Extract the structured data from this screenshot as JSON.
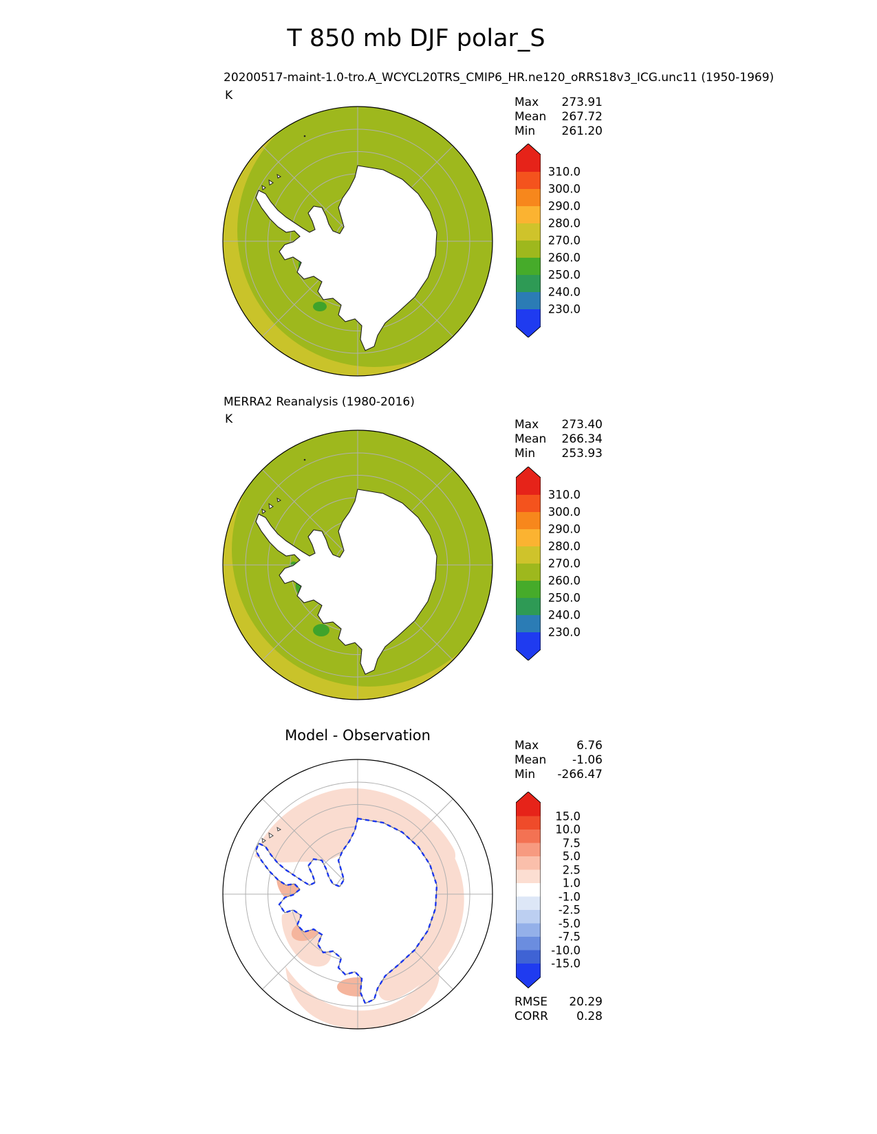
{
  "title": "T 850 mb DJF polar_S",
  "panels": {
    "model": {
      "subtitle": "20200517-maint-1.0-tro.A_WCYCL20TRS_CMIP6_HR.ne120_oRRS18v3_ICG.unc11 (1950-1969)",
      "units": "K",
      "stats": [
        {
          "label": "Max",
          "value": "273.91"
        },
        {
          "label": "Mean",
          "value": "267.72"
        },
        {
          "label": "Min",
          "value": "261.20"
        }
      ],
      "colorbar": {
        "tick_labels": [
          "310.0",
          "300.0",
          "290.0",
          "280.0",
          "270.0",
          "260.0",
          "250.0",
          "240.0",
          "230.0"
        ],
        "segment_colors": [
          "#f4531d",
          "#f7871c",
          "#fbb331",
          "#cfc32b",
          "#9eb81d",
          "#46ab2a",
          "#2e9a55",
          "#2b7cb5"
        ],
        "over_color": "#e62319",
        "under_color": "#1f3bf0"
      },
      "map_colors": {
        "ocean": "#9eb81d",
        "rim": "#c9c32a",
        "land": "#ffffff",
        "patch": "#3fa32b"
      }
    },
    "obs": {
      "subtitle": "MERRA2 Reanalysis (1980-2016)",
      "units": "K",
      "stats": [
        {
          "label": "Max",
          "value": "273.40"
        },
        {
          "label": "Mean",
          "value": "266.34"
        },
        {
          "label": "Min",
          "value": "253.93"
        }
      ],
      "colorbar": {
        "tick_labels": [
          "310.0",
          "300.0",
          "290.0",
          "280.0",
          "270.0",
          "260.0",
          "250.0",
          "240.0",
          "230.0"
        ],
        "segment_colors": [
          "#f4531d",
          "#f7871c",
          "#fbb331",
          "#cfc32b",
          "#9eb81d",
          "#46ab2a",
          "#2e9a55",
          "#2b7cb5"
        ],
        "over_color": "#e62319",
        "under_color": "#1f3bf0"
      },
      "map_colors": {
        "ocean": "#9eb81d",
        "rim": "#c9c32a",
        "land": "#ffffff",
        "patch": "#3fa32b"
      }
    },
    "diff": {
      "subtitle": "Model - Observation",
      "stats": [
        {
          "label": "Max",
          "value": "6.76"
        },
        {
          "label": "Mean",
          "value": "-1.06"
        },
        {
          "label": "Min",
          "value": "-266.47"
        }
      ],
      "colorbar": {
        "tick_labels": [
          "15.0",
          "10.0",
          "7.5",
          "5.0",
          "2.5",
          "1.0",
          "-1.0",
          "-2.5",
          "-5.0",
          "-7.5",
          "-10.0",
          "-15.0"
        ],
        "segment_colors": [
          "#ef4b2a",
          "#f37253",
          "#f79a80",
          "#fabfab",
          "#fcded2",
          "#ffffff",
          "#dde7f7",
          "#bccff1",
          "#94b0e9",
          "#6b8ddf",
          "#3f63d4"
        ],
        "over_color": "#e62319",
        "under_color": "#1f3bf0"
      },
      "extra_stats": [
        {
          "label": "RMSE",
          "value": "20.29"
        },
        {
          "label": "CORR",
          "value": "0.28"
        }
      ],
      "map_colors": {
        "ocean": "#ffffff",
        "pink": "#fadcd0",
        "salmon": "#f5b59d",
        "land": "#ffffff",
        "coast_dash": "#1a36ee"
      }
    }
  },
  "chart_data": [
    {
      "type": "heatmap",
      "title": "20200517-maint-1.0-tro.A_WCYCL20TRS_CMIP6_HR.ne120_oRRS18v3_ICG.unc11 (1950-1969)",
      "variable": "T 850 mb",
      "season": "DJF",
      "projection": "polar_S (South Polar Stereographic, Antarctica centered)",
      "units": "K",
      "stats": {
        "max": 273.91,
        "mean": 267.72,
        "min": 261.2
      },
      "contour_levels": [
        230.0,
        240.0,
        250.0,
        260.0,
        270.0,
        280.0,
        290.0,
        300.0,
        310.0
      ],
      "colormap": "rainbow blue-green-yellow-orange-red with over/under arrows",
      "legend_position": "right",
      "notes": "Ocean mostly in the 260-270 K olive-green band; mustard 270-280 K band along the outer (lower-latitude) rim, mainly lower-left; Antarctica masked white with black coastline; gray lat/lon graticule"
    },
    {
      "type": "heatmap",
      "title": "MERRA2 Reanalysis (1980-2016)",
      "variable": "T 850 mb",
      "season": "DJF",
      "projection": "polar_S (South Polar Stereographic, Antarctica centered)",
      "units": "K",
      "stats": {
        "max": 273.4,
        "mean": 266.34,
        "min": 253.93
      },
      "contour_levels": [
        230.0,
        240.0,
        250.0,
        260.0,
        270.0,
        280.0,
        290.0,
        300.0,
        310.0
      ],
      "colormap": "rainbow blue-green-yellow-orange-red with over/under arrows",
      "legend_position": "right",
      "notes": "Same layout as model panel; extra darker-green 250-260 K patches near the Antarctic Peninsula / Weddell coast"
    },
    {
      "type": "heatmap",
      "title": "Model - Observation",
      "variable": "T 850 mb difference",
      "season": "DJF",
      "projection": "polar_S (South Polar Stereographic, Antarctica centered)",
      "units": "K",
      "stats": {
        "max": 6.76,
        "mean": -1.06,
        "min": -266.47,
        "rmse": 20.29,
        "corr": 0.28
      },
      "contour_levels": [
        -15.0,
        -10.0,
        -7.5,
        -5.0,
        -2.5,
        -1.0,
        1.0,
        2.5,
        5.0,
        7.5,
        10.0,
        15.0
      ],
      "colormap": "diverging red-white-blue with over/under arrows",
      "legend_position": "right",
      "notes": "Mostly white (|diff| < 1 K) with light-red +1 to +5 K areas over ocean around the continent; blue dashed band of negative differences hugging the coastline"
    }
  ]
}
